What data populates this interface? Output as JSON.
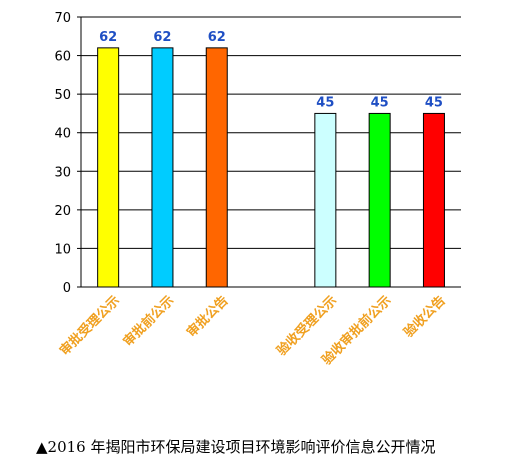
{
  "chart_data": {
    "type": "bar",
    "categories": [
      "审批受理公示",
      "审批前公示",
      "审批公告",
      "",
      "验收受理公示",
      "验收审批前公示",
      "验收公告"
    ],
    "values": [
      62,
      62,
      62,
      null,
      45,
      45,
      45
    ],
    "colors": [
      "#ffff00",
      "#00ccff",
      "#ff6600",
      null,
      "#ccffff",
      "#00ff00",
      "#ff0000"
    ],
    "value_label_color": "#1f4fc4",
    "category_label_color": "#f0a020",
    "title": "",
    "xlabel": "",
    "ylabel": "",
    "ylim": [
      0,
      70
    ],
    "yticks": [
      0,
      10,
      20,
      30,
      40,
      50,
      60,
      70
    ],
    "grid": true,
    "legend": "none"
  },
  "caption": "▲2016 年揭阳市环保局建设项目环境影响评价信息公开情况"
}
